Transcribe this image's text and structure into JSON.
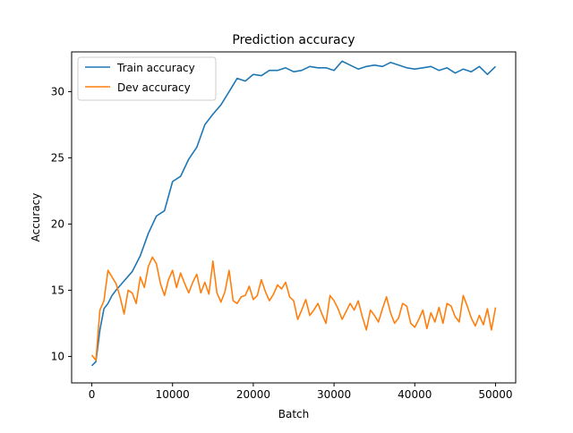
{
  "chart_data": {
    "type": "line",
    "title": "Prediction accuracy",
    "xlabel": "Batch",
    "ylabel": "Accuracy",
    "xlim": [
      -2500,
      52500
    ],
    "ylim": [
      8.0,
      33.0
    ],
    "xticks": [
      0,
      10000,
      20000,
      30000,
      40000,
      50000
    ],
    "yticks": [
      10,
      15,
      20,
      25,
      30
    ],
    "legend_position": "top-left",
    "grid": false,
    "series": [
      {
        "name": "Train accuracy",
        "color": "#1f77b4",
        "x": [
          0,
          500,
          1000,
          1500,
          2000,
          2500,
          3000,
          4000,
          5000,
          6000,
          7000,
          8000,
          9000,
          10000,
          11000,
          12000,
          13000,
          14000,
          15000,
          16000,
          17000,
          18000,
          19000,
          20000,
          21000,
          22000,
          23000,
          24000,
          25000,
          26000,
          27000,
          28000,
          29000,
          30000,
          31000,
          32000,
          33000,
          34000,
          35000,
          36000,
          37000,
          38000,
          39000,
          40000,
          41000,
          42000,
          43000,
          44000,
          45000,
          46000,
          47000,
          48000,
          49000,
          50000
        ],
        "y": [
          9.3,
          9.6,
          12.0,
          13.6,
          14.0,
          14.6,
          15.0,
          15.7,
          16.4,
          17.6,
          19.3,
          20.6,
          21.0,
          23.2,
          23.6,
          24.9,
          25.8,
          27.5,
          28.3,
          29.0,
          30.0,
          31.0,
          30.8,
          31.3,
          31.2,
          31.6,
          31.6,
          31.8,
          31.5,
          31.6,
          31.9,
          31.8,
          31.8,
          31.6,
          32.3,
          32.0,
          31.7,
          31.9,
          32.0,
          31.9,
          32.2,
          32.0,
          31.8,
          31.7,
          31.8,
          31.9,
          31.6,
          31.8,
          31.4,
          31.7,
          31.5,
          31.9,
          31.3,
          31.9
        ]
      },
      {
        "name": "Dev accuracy",
        "color": "#ff7f0e",
        "x": [
          0,
          500,
          1000,
          1500,
          2000,
          2500,
          3000,
          3500,
          4000,
          4500,
          5000,
          5500,
          6000,
          6500,
          7000,
          7500,
          8000,
          8500,
          9000,
          9500,
          10000,
          10500,
          11000,
          11500,
          12000,
          12500,
          13000,
          13500,
          14000,
          14500,
          15000,
          15500,
          16000,
          16500,
          17000,
          17500,
          18000,
          18500,
          19000,
          19500,
          20000,
          20500,
          21000,
          21500,
          22000,
          22500,
          23000,
          23500,
          24000,
          24500,
          25000,
          25500,
          26000,
          26500,
          27000,
          27500,
          28000,
          28500,
          29000,
          29500,
          30000,
          30500,
          31000,
          31500,
          32000,
          32500,
          33000,
          33500,
          34000,
          34500,
          35000,
          35500,
          36000,
          36500,
          37000,
          37500,
          38000,
          38500,
          39000,
          39500,
          40000,
          40500,
          41000,
          41500,
          42000,
          42500,
          43000,
          43500,
          44000,
          44500,
          45000,
          45500,
          46000,
          46500,
          47000,
          47500,
          48000,
          48500,
          49000,
          49500,
          50000
        ],
        "y": [
          10.1,
          9.7,
          13.5,
          14.2,
          16.5,
          16.0,
          15.5,
          14.5,
          13.2,
          15.0,
          14.8,
          14.0,
          16.0,
          15.2,
          16.8,
          17.5,
          17.0,
          15.5,
          14.6,
          15.8,
          16.5,
          15.2,
          16.3,
          15.5,
          14.8,
          15.6,
          16.2,
          14.8,
          15.6,
          14.7,
          17.2,
          14.8,
          14.1,
          14.9,
          16.5,
          14.2,
          14.0,
          14.5,
          14.6,
          15.3,
          14.3,
          14.6,
          15.8,
          14.9,
          14.2,
          14.7,
          15.4,
          15.1,
          15.6,
          14.5,
          14.2,
          12.8,
          13.5,
          14.3,
          13.1,
          13.5,
          14.0,
          13.2,
          12.5,
          14.6,
          14.2,
          13.6,
          12.8,
          13.4,
          14.0,
          13.5,
          14.2,
          13.0,
          12.0,
          13.5,
          13.1,
          12.6,
          13.6,
          14.5,
          13.3,
          12.5,
          12.9,
          14.0,
          13.8,
          12.5,
          12.2,
          12.8,
          13.5,
          12.1,
          13.3,
          12.6,
          13.7,
          12.5,
          14.0,
          13.8,
          13.0,
          12.6,
          14.6,
          13.8,
          12.9,
          12.3,
          13.1,
          12.4,
          13.6,
          12.0,
          13.7
        ]
      }
    ]
  }
}
